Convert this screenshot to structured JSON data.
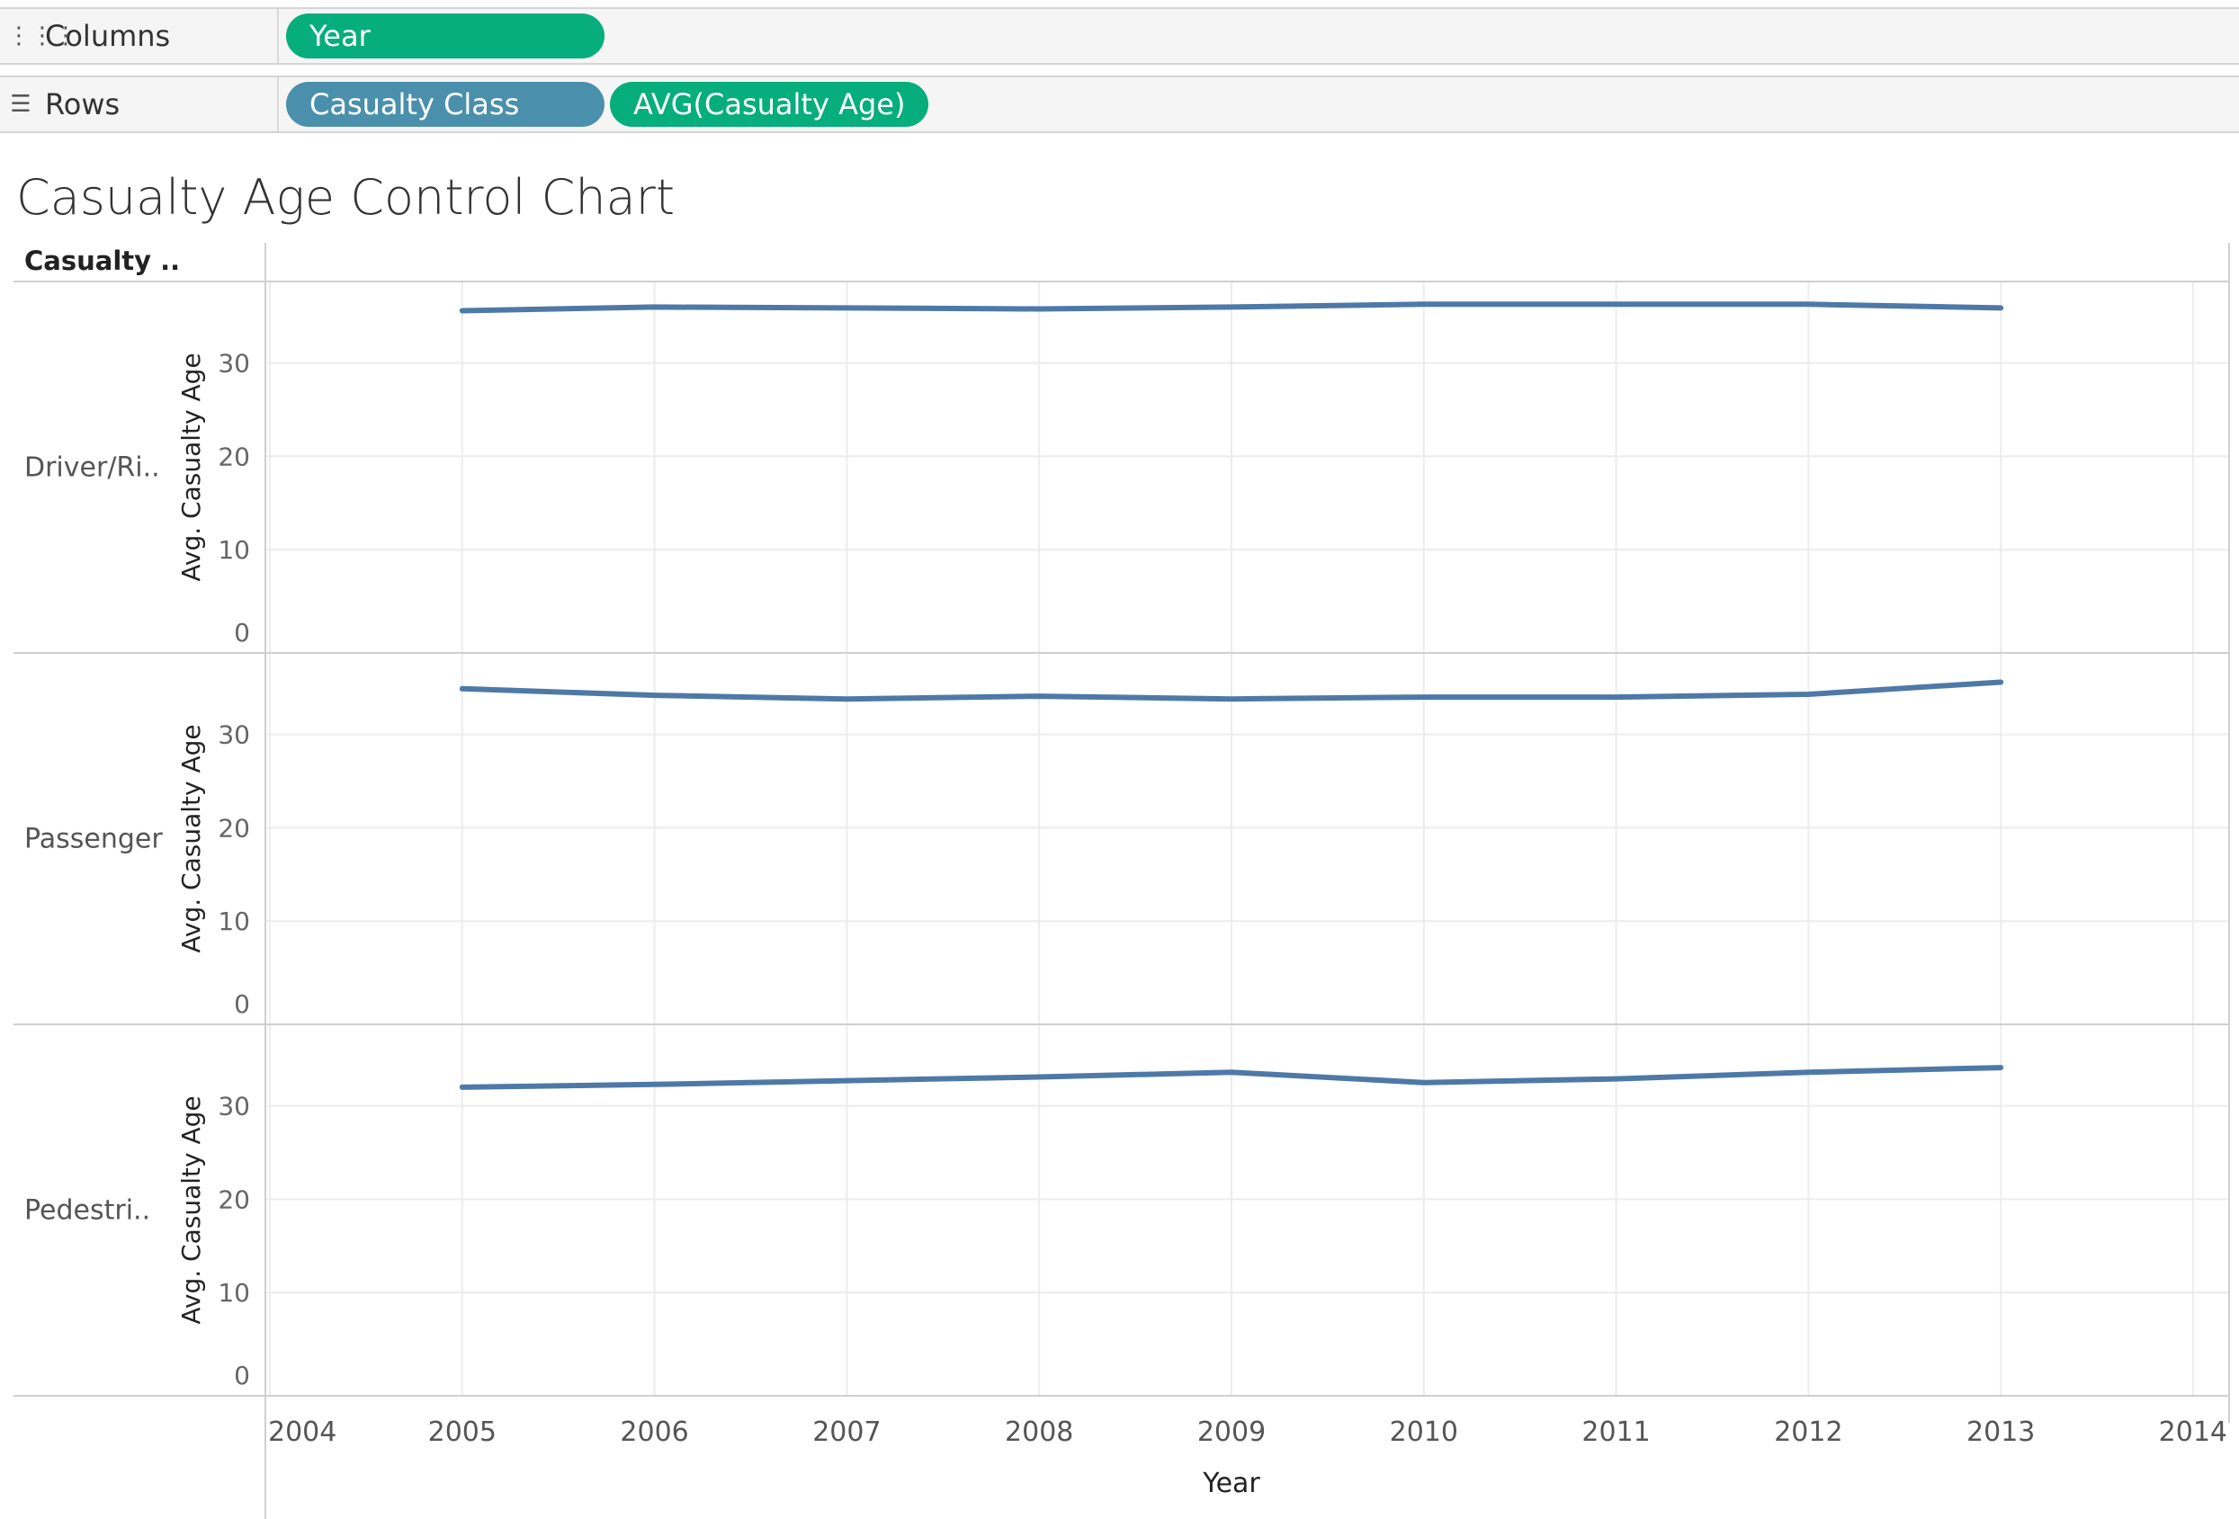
{
  "shelves": {
    "columns": {
      "label": "Columns",
      "icon": "columns-icon",
      "pills": [
        {
          "label": "Year",
          "color": "#06ad7d"
        }
      ]
    },
    "rows": {
      "label": "Rows",
      "icon": "rows-icon",
      "pills": [
        {
          "label": "Casualty Class",
          "color": "#4a90ac"
        },
        {
          "label": "AVG(Casualty Age)",
          "color": "#06ad7d"
        }
      ]
    }
  },
  "title": "Casualty Age Control Chart",
  "chart_data": {
    "type": "line",
    "title": "Casualty Age Control Chart",
    "row_header": "Casualty ..",
    "xlabel": "Year",
    "ylabel": "Avg. Casualty Age",
    "x_ticks": [
      2004,
      2005,
      2006,
      2007,
      2008,
      2009,
      2010,
      2011,
      2012,
      2013,
      2014
    ],
    "xlim": [
      2004,
      2014
    ],
    "ylim": [
      0,
      37
    ],
    "y_ticks": [
      0,
      10,
      20,
      30
    ],
    "line_color": "#4e79a7",
    "grid": true,
    "x": [
      2005,
      2006,
      2007,
      2008,
      2009,
      2010,
      2011,
      2012,
      2013
    ],
    "panels": [
      {
        "name": "Driver/Ri..",
        "values": [
          35.6,
          36.0,
          35.9,
          35.8,
          36.0,
          36.3,
          36.3,
          36.3,
          35.9
        ]
      },
      {
        "name": "Passenger",
        "values": [
          34.9,
          34.2,
          33.8,
          34.1,
          33.8,
          34.0,
          34.0,
          34.3,
          35.6
        ]
      },
      {
        "name": "Pedestri..",
        "values": [
          32.0,
          32.3,
          32.7,
          33.1,
          33.6,
          32.5,
          32.9,
          33.6,
          34.1
        ]
      }
    ]
  }
}
